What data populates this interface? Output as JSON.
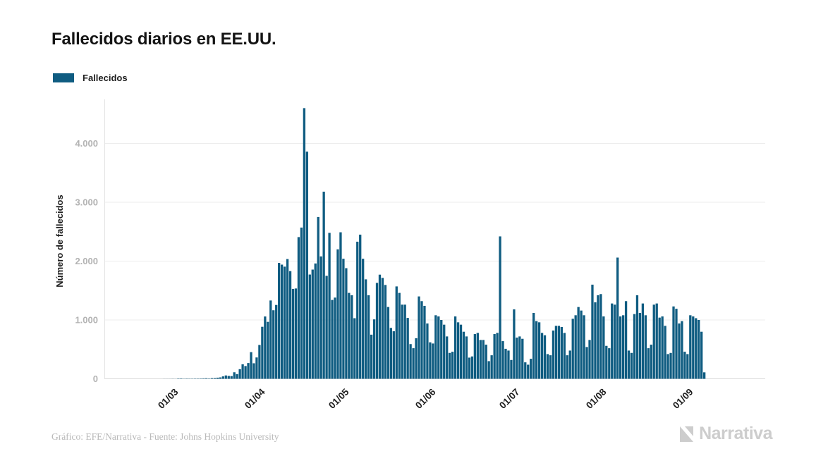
{
  "title": "Fallecidos diarios en EE.UU.",
  "legend": {
    "label": "Fallecidos",
    "color": "#0f5c81"
  },
  "footer": {
    "credit": "Gráfico: EFE/Narrativa - Fuente: Johns Hopkins University",
    "brand": "Narrativa"
  },
  "chart_data": {
    "type": "bar",
    "title": "Fallecidos diarios en EE.UU.",
    "xlabel": "",
    "ylabel": "Número de fallecidos",
    "ylim": [
      0,
      4600
    ],
    "grid": true,
    "legend_position": "top-left",
    "bar_color": "#0f5c81",
    "y_ticks": [
      {
        "label": "0",
        "value": 0
      },
      {
        "label": "1.000",
        "value": 1000
      },
      {
        "label": "2.000",
        "value": 2000
      },
      {
        "label": "3.000",
        "value": 3000
      },
      {
        "label": "4.000",
        "value": 4000
      }
    ],
    "x_ticks": [
      {
        "label": "01/03",
        "index": 23
      },
      {
        "label": "01/04",
        "index": 54
      },
      {
        "label": "01/05",
        "index": 84
      },
      {
        "label": "01/06",
        "index": 115
      },
      {
        "label": "01/07",
        "index": 145
      },
      {
        "label": "01/08",
        "index": 176
      },
      {
        "label": "01/09",
        "index": 207
      }
    ],
    "series": [
      {
        "name": "Fallecidos",
        "values": [
          0,
          0,
          0,
          0,
          0,
          0,
          0,
          0,
          0,
          0,
          0,
          0,
          0,
          0,
          0,
          0,
          0,
          0,
          0,
          1,
          1,
          1,
          2,
          1,
          6,
          7,
          3,
          5,
          4,
          4,
          5,
          5,
          6,
          8,
          10,
          6,
          12,
          13,
          19,
          24,
          41,
          57,
          49,
          46,
          111,
          80,
          164,
          247,
          217,
          268,
          453,
          264,
          363,
          575,
          884,
          1059,
          968,
          1331,
          1165,
          1255,
          1970,
          1940,
          1906,
          2035,
          1830,
          1528,
          1535,
          2408,
          2570,
          4600,
          3860,
          1772,
          1856,
          1960,
          2750,
          2080,
          3180,
          1750,
          2480,
          1340,
          1380,
          2200,
          2490,
          2040,
          1880,
          1460,
          1420,
          1030,
          2330,
          2450,
          2040,
          1690,
          1420,
          750,
          1010,
          1630,
          1770,
          1715,
          1595,
          1220,
          865,
          808,
          1570,
          1460,
          1260,
          1260,
          1035,
          590,
          520,
          690,
          1400,
          1320,
          1240,
          940,
          620,
          600,
          1080,
          1060,
          1000,
          920,
          720,
          440,
          460,
          1060,
          960,
          920,
          800,
          720,
          360,
          380,
          760,
          780,
          660,
          660,
          580,
          300,
          400,
          760,
          780,
          2420,
          640,
          510,
          480,
          320,
          1180,
          700,
          720,
          680,
          280,
          240,
          340,
          1120,
          980,
          960,
          780,
          740,
          420,
          400,
          820,
          900,
          900,
          880,
          780,
          400,
          480,
          1020,
          1080,
          1220,
          1160,
          1080,
          540,
          660,
          1600,
          1300,
          1420,
          1440,
          1060,
          560,
          520,
          1280,
          1260,
          2060,
          1060,
          1080,
          1320,
          480,
          440,
          1100,
          1420,
          1120,
          1280,
          1080,
          520,
          580,
          1260,
          1280,
          1040,
          1060,
          900,
          420,
          440,
          1230,
          1190,
          940,
          980,
          460,
          420,
          1080,
          1060,
          1030,
          1000,
          800,
          110
        ]
      }
    ]
  }
}
